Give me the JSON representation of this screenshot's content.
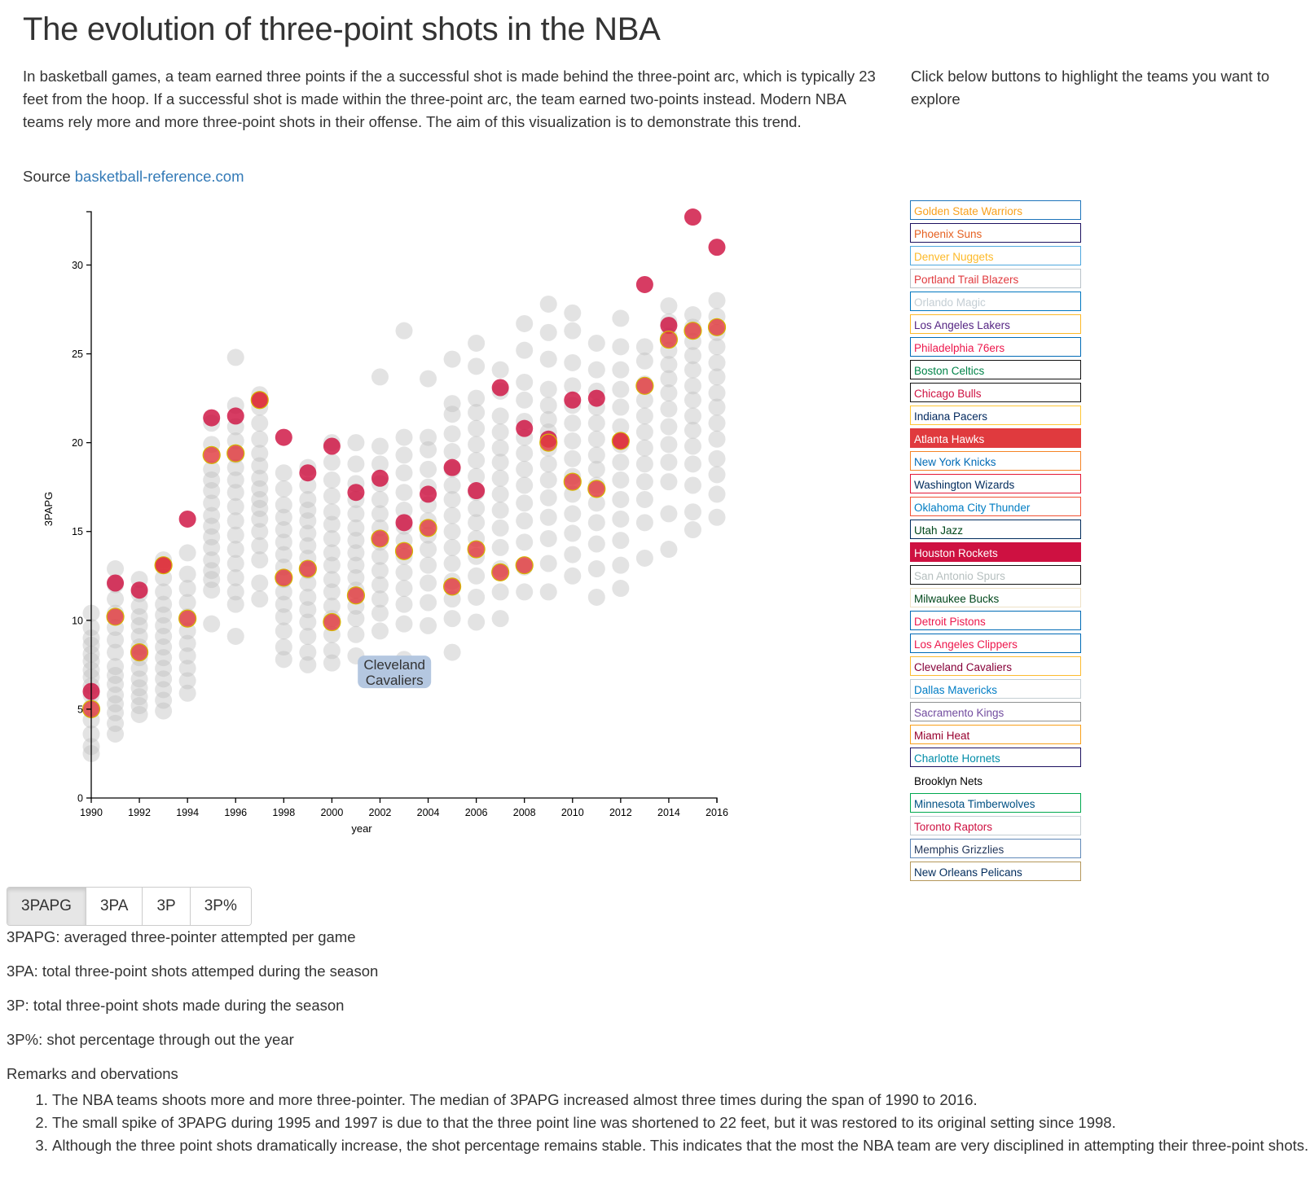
{
  "page": {
    "title": "The evolution of three-point shots in the NBA",
    "intro": "In basketball games, a team earned three points if the a successful shot is made behind the three-point arc, which is typically 23 feet from the hoop. If a successful shot is made within the three-point arc, the team earned two-points instead. Modern NBA teams rely more and more three-point shots in their offense. The aim of this visualization is to demonstrate this trend.",
    "source_label": "Source",
    "source_link": "basketball-reference.com",
    "team_hint": "Click below buttons to highlight the teams you want to explore"
  },
  "teams": [
    {
      "name": "Golden State Warriors",
      "color": "#f9a01b",
      "border": "#1d74bb",
      "active": false
    },
    {
      "name": "Phoenix Suns",
      "color": "#e56020",
      "border": "#1d1160",
      "active": false
    },
    {
      "name": "Denver Nuggets",
      "color": "#fdb927",
      "border": "#4fa8de",
      "active": false
    },
    {
      "name": "Portland Trail Blazers",
      "color": "#e03a3e",
      "border": "#bac3c9",
      "active": false
    },
    {
      "name": "Orlando Magic",
      "color": "#c4ced4",
      "border": "#0077c0",
      "active": false
    },
    {
      "name": "Los Angeles Lakers",
      "color": "#552583",
      "border": "#fdb927",
      "active": false
    },
    {
      "name": "Philadelphia 76ers",
      "color": "#ed174c",
      "border": "#006bb6",
      "active": false
    },
    {
      "name": "Boston Celtics",
      "color": "#008348",
      "border": "#111111",
      "active": false
    },
    {
      "name": "Chicago Bulls",
      "color": "#ce1141",
      "border": "#111111",
      "active": false
    },
    {
      "name": "Indiana Pacers",
      "color": "#00275d",
      "border": "#ffc633",
      "active": false
    },
    {
      "name": "Atlanta Hawks",
      "color": "#c4d600",
      "border": "#e03a3e",
      "active": true,
      "fill": "#e03a3e"
    },
    {
      "name": "New York Knicks",
      "color": "#006bb6",
      "border": "#f58426",
      "active": false
    },
    {
      "name": "Washington Wizards",
      "color": "#002b5c",
      "border": "#e31837",
      "active": false
    },
    {
      "name": "Oklahoma City Thunder",
      "color": "#007dc3",
      "border": "#f05133",
      "active": false
    },
    {
      "name": "Utah Jazz",
      "color": "#00471b",
      "border": "#002b5c",
      "active": false
    },
    {
      "name": "Houston Rockets",
      "color": "#ffffff",
      "border": "#ce1141",
      "active": true,
      "fill": "#ce1141"
    },
    {
      "name": "San Antonio Spurs",
      "color": "#b6bfbf",
      "border": "#111111",
      "active": false
    },
    {
      "name": "Milwaukee Bucks",
      "color": "#00471b",
      "border": "#eee1c6",
      "active": false
    },
    {
      "name": "Detroit Pistons",
      "color": "#ed174c",
      "border": "#006bb6",
      "active": false
    },
    {
      "name": "Los Angeles Clippers",
      "color": "#ed174c",
      "border": "#006bb6",
      "active": false
    },
    {
      "name": "Cleveland Cavaliers",
      "color": "#860038",
      "border": "#fdbb30",
      "active": false
    },
    {
      "name": "Dallas Mavericks",
      "color": "#007dc5",
      "border": "#c4ced3",
      "active": false
    },
    {
      "name": "Sacramento Kings",
      "color": "#724c9f",
      "border": "#8e9090",
      "active": false
    },
    {
      "name": "Miami Heat",
      "color": "#98002e",
      "border": "#f9a01b",
      "active": false
    },
    {
      "name": "Charlotte Hornets",
      "color": "#008ca8",
      "border": "#1d1160",
      "active": false
    },
    {
      "name": "Brooklyn Nets",
      "color": "#000000",
      "border": "#ffffff",
      "active": false
    },
    {
      "name": "Minnesota Timberwolves",
      "color": "#005083",
      "border": "#00a94f",
      "active": false
    },
    {
      "name": "Toronto Raptors",
      "color": "#ce1141",
      "border": "#c4ced3",
      "active": false
    },
    {
      "name": "Memphis Grizzlies",
      "color": "#23375b",
      "border": "#6189b9",
      "active": false
    },
    {
      "name": "New Orleans Pelicans",
      "color": "#002b5c",
      "border": "#b4975a",
      "active": false
    }
  ],
  "metric_buttons": [
    {
      "label": "3PAPG",
      "active": true
    },
    {
      "label": "3PA",
      "active": false
    },
    {
      "label": "3P",
      "active": false
    },
    {
      "label": "3P%",
      "active": false
    }
  ],
  "definitions": [
    "3PAPG: averaged three-pointer attempted per game",
    "3PA: total three-point shots attemped during the season",
    "3P: total three-point shots made during the season",
    "3P%: shot percentage through out the year"
  ],
  "remarks_title": "Remarks and obervations",
  "remarks": [
    "The NBA teams shoots more and more three-pointer. The median of 3PAPG increased almost three times during the span of 1990 to 2016.",
    "The small spike of 3PAPG during 1995 and 1997 is due to that the three point line was shortened to 22 feet, but it was restored to its original setting since 1998.",
    "Although the three point shots dramatically increase, the shot percentage remains stable. This indicates that the most the NBA team are very disciplined in attempting their three-point shots."
  ],
  "chart_data": {
    "type": "scatter",
    "xlabel": "year",
    "ylabel": "3PAPG",
    "xlim": [
      1990,
      2016
    ],
    "ylim": [
      0,
      33
    ],
    "x_ticks": [
      1990,
      1992,
      1994,
      1996,
      1998,
      2000,
      2002,
      2004,
      2006,
      2008,
      2010,
      2012,
      2014,
      2016
    ],
    "y_ticks": [
      0,
      5,
      10,
      15,
      20,
      25,
      30
    ],
    "tooltip": {
      "line1": "Cleveland",
      "line2": "Cavaliers",
      "year": 2002.6,
      "value": 7.1
    },
    "series": [
      {
        "name": "Houston Rockets",
        "color": "#ce1141",
        "x": [
          1990,
          1991,
          1992,
          1993,
          1994,
          1995,
          1996,
          1997,
          1998,
          1999,
          2000,
          2001,
          2002,
          2003,
          2004,
          2005,
          2006,
          2007,
          2008,
          2009,
          2010,
          2011,
          2012,
          2013,
          2014,
          2015,
          2016
        ],
        "y": [
          6.0,
          12.1,
          11.7,
          13.1,
          15.7,
          21.4,
          21.5,
          22.4,
          20.3,
          18.3,
          19.8,
          17.2,
          18.0,
          15.5,
          17.1,
          18.6,
          17.3,
          23.1,
          20.8,
          20.2,
          22.4,
          22.5,
          20.1,
          28.9,
          26.6,
          32.7,
          31.0
        ]
      },
      {
        "name": "Atlanta Hawks",
        "color": "#e03a3e",
        "x": [
          1990,
          1991,
          1992,
          1993,
          1994,
          1995,
          1996,
          1997,
          1998,
          1999,
          2000,
          2001,
          2002,
          2003,
          2004,
          2005,
          2006,
          2007,
          2008,
          2009,
          2010,
          2011,
          2012,
          2013,
          2014,
          2015,
          2016
        ],
        "y": [
          5.0,
          10.2,
          8.2,
          13.1,
          10.1,
          19.3,
          19.4,
          22.4,
          12.4,
          12.9,
          9.9,
          11.4,
          14.6,
          13.9,
          15.2,
          11.9,
          14.0,
          12.7,
          13.1,
          20.0,
          17.8,
          17.4,
          20.1,
          23.2,
          25.8,
          26.3,
          26.5
        ]
      },
      {
        "name": "Other teams",
        "color": "#bdbdbd",
        "x": [
          1990,
          1991,
          1992,
          1993,
          1994,
          1995,
          1996,
          1997,
          1998,
          1999,
          2000,
          2001,
          2002,
          2003,
          2004,
          2005,
          2006,
          2007,
          2008,
          2009,
          2010,
          2011,
          2012,
          2013,
          2014,
          2015,
          2016
        ],
        "y": [
          [
            2.5,
            2.9,
            3.6,
            4.4,
            5.1,
            5.8,
            6.3,
            6.8,
            7.2,
            7.7,
            8.1,
            8.6,
            9.0,
            9.6,
            10.4
          ],
          [
            3.6,
            4.2,
            4.8,
            5.3,
            5.8,
            6.4,
            6.9,
            7.4,
            8.2,
            8.9,
            9.6,
            10.4,
            11.2,
            12.0,
            12.9
          ],
          [
            4.7,
            5.2,
            5.7,
            6.2,
            6.7,
            7.3,
            7.9,
            8.5,
            9.1,
            9.7,
            10.2,
            10.8,
            11.5,
            12.3
          ],
          [
            4.9,
            5.5,
            6.1,
            6.7,
            7.3,
            7.9,
            8.5,
            9.1,
            9.7,
            10.3,
            10.9,
            11.6,
            12.4,
            13.4
          ],
          [
            5.9,
            6.6,
            7.3,
            8.0,
            8.7,
            9.4,
            10.2,
            11.0,
            11.8,
            12.6,
            13.8
          ],
          [
            9.8,
            11.7,
            12.3,
            12.8,
            13.4,
            14.1,
            14.7,
            15.3,
            15.9,
            16.6,
            17.3,
            17.9,
            18.5,
            19.9,
            21.1
          ],
          [
            9.1,
            10.9,
            11.6,
            12.4,
            13.2,
            14.0,
            14.8,
            15.6,
            16.4,
            17.2,
            17.9,
            18.6,
            19.3,
            20.1,
            20.9,
            22.1,
            24.8
          ],
          [
            11.2,
            12.1,
            13.4,
            14.2,
            15.0,
            15.7,
            16.3,
            16.8,
            17.4,
            18.0,
            18.7,
            19.4,
            20.2,
            21.1,
            22.0,
            22.7
          ],
          [
            7.8,
            8.5,
            9.4,
            10.2,
            10.9,
            11.6,
            12.3,
            13.0,
            13.7,
            14.4,
            15.1,
            15.8,
            16.5,
            17.4,
            18.3
          ],
          [
            7.5,
            8.2,
            9.1,
            9.9,
            10.6,
            11.3,
            12.1,
            12.8,
            13.5,
            14.2,
            14.9,
            15.6,
            16.2,
            16.8,
            17.6,
            18.6
          ],
          [
            7.6,
            8.3,
            9.2,
            10.1,
            10.8,
            11.6,
            12.3,
            13.1,
            13.8,
            14.6,
            15.4,
            16.1,
            17.0,
            17.9,
            18.9,
            20.0
          ],
          [
            8.0,
            9.2,
            10.1,
            10.8,
            11.7,
            12.4,
            13.1,
            13.8,
            14.5,
            15.2,
            16.0,
            16.8,
            17.7,
            18.8,
            20.0
          ],
          [
            7.1,
            9.4,
            10.4,
            11.2,
            12.0,
            12.8,
            13.6,
            14.4,
            15.2,
            16.0,
            16.8,
            17.7,
            18.8,
            19.8,
            23.7
          ],
          [
            7.8,
            9.8,
            10.9,
            11.8,
            12.7,
            13.6,
            14.5,
            15.3,
            16.2,
            17.2,
            18.3,
            19.3,
            20.3,
            26.3
          ],
          [
            9.7,
            11.0,
            12.1,
            13.1,
            14.0,
            14.8,
            15.6,
            16.5,
            17.5,
            18.5,
            19.6,
            20.3,
            23.6
          ],
          [
            8.2,
            10.1,
            11.2,
            12.2,
            13.2,
            14.1,
            15.0,
            15.9,
            16.8,
            17.6,
            18.5,
            19.5,
            20.5,
            21.6,
            22.2,
            24.7
          ],
          [
            9.9,
            11.3,
            12.5,
            13.6,
            14.6,
            15.5,
            16.3,
            17.2,
            18.1,
            19.0,
            19.9,
            20.8,
            21.7,
            22.5,
            24.3,
            25.6
          ],
          [
            10.1,
            11.6,
            12.9,
            14.1,
            15.2,
            16.2,
            17.1,
            18.0,
            18.9,
            19.7,
            20.6,
            21.5,
            22.9,
            24.1
          ],
          [
            11.6,
            13.0,
            14.4,
            15.6,
            16.6,
            17.6,
            18.5,
            19.4,
            20.3,
            21.2,
            22.4,
            23.4,
            25.2,
            26.7
          ],
          [
            11.6,
            13.2,
            14.6,
            15.8,
            16.9,
            17.9,
            18.8,
            19.7,
            20.6,
            21.3,
            22.1,
            23.0,
            24.7,
            26.2,
            27.8
          ],
          [
            12.5,
            13.7,
            14.9,
            16.0,
            17.1,
            18.1,
            19.1,
            20.1,
            21.1,
            22.1,
            23.2,
            24.5,
            26.3,
            27.3
          ],
          [
            11.3,
            12.9,
            14.3,
            15.5,
            16.6,
            17.6,
            18.5,
            19.3,
            20.2,
            21.1,
            22.0,
            22.9,
            24.1,
            25.6
          ],
          [
            11.8,
            13.1,
            14.5,
            15.7,
            16.8,
            17.9,
            18.9,
            19.9,
            20.9,
            22.0,
            23.0,
            24.1,
            25.4,
            27.0
          ],
          [
            13.5,
            15.5,
            16.8,
            17.8,
            18.8,
            19.7,
            20.6,
            21.5,
            22.4,
            23.3,
            24.6,
            25.4
          ],
          [
            14.0,
            16.0,
            17.8,
            18.9,
            19.9,
            20.9,
            21.9,
            22.8,
            23.6,
            24.4,
            25.2,
            26.0,
            26.8,
            27.7
          ],
          [
            15.1,
            16.1,
            17.6,
            18.8,
            19.8,
            20.7,
            21.5,
            22.4,
            23.2,
            24.1,
            24.9,
            25.7,
            26.5,
            27.2
          ],
          [
            15.8,
            17.1,
            18.2,
            19.1,
            20.2,
            21.1,
            22.0,
            22.8,
            23.7,
            24.5,
            25.4,
            26.2,
            27.1,
            28.0
          ]
        ]
      }
    ]
  }
}
